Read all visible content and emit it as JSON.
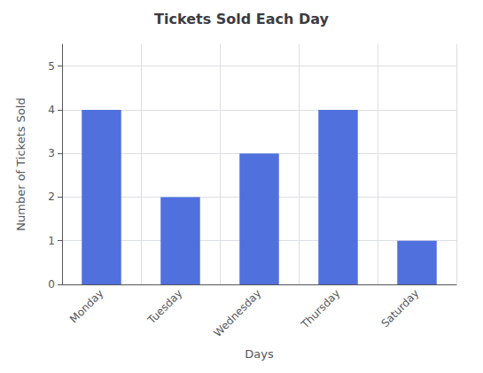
{
  "chart_data": {
    "type": "bar",
    "title": "Tickets Sold Each Day",
    "xlabel": "Days",
    "ylabel": "Number of Tickets Sold",
    "categories": [
      "Monday",
      "Tuesday",
      "Wednesday",
      "Thursday",
      "Saturday"
    ],
    "values": [
      4,
      2,
      3,
      4,
      1
    ],
    "ylim": [
      0,
      5.5
    ],
    "yticks": [
      0,
      1,
      2,
      3,
      4,
      5
    ],
    "grid": true
  }
}
